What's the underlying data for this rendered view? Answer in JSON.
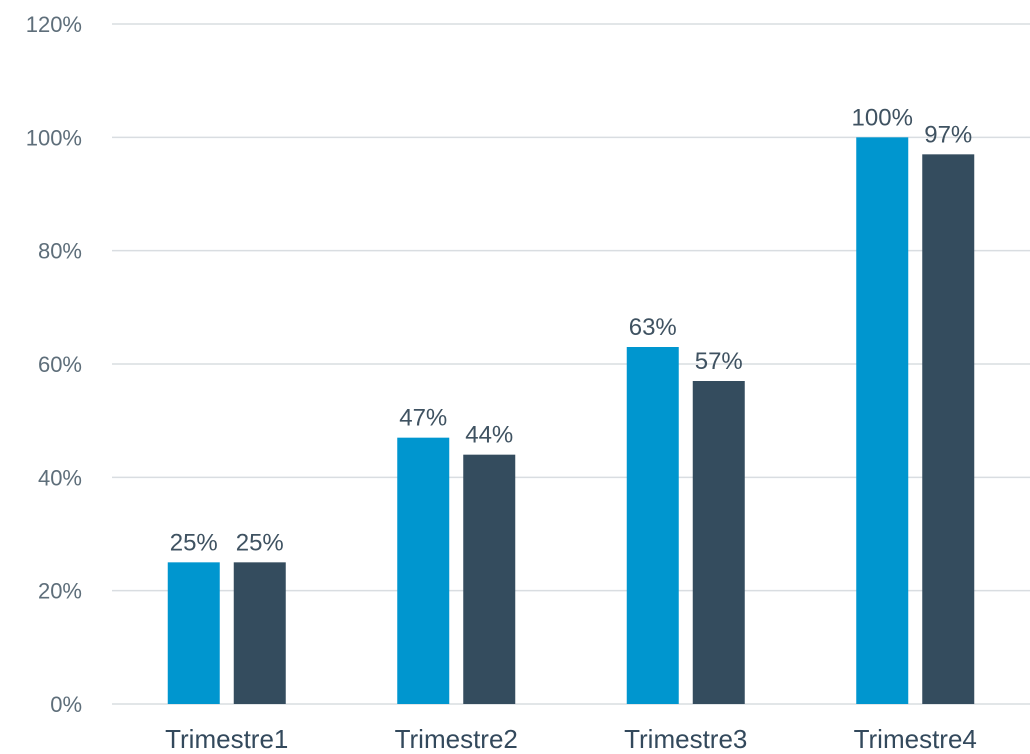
{
  "chart_data": {
    "type": "bar",
    "categories": [
      "Trimestre1",
      "Trimestre2",
      "Trimestre3",
      "Trimestre4"
    ],
    "series": [
      {
        "values": [
          25,
          47,
          63,
          100
        ],
        "color": "#0096cf"
      },
      {
        "values": [
          25,
          44,
          57,
          97
        ],
        "color": "#344c5e"
      }
    ],
    "value_labels": [
      [
        "25%",
        "47%",
        "63%",
        "100%"
      ],
      [
        "25%",
        "44%",
        "57%",
        "97%"
      ]
    ],
    "y_ticks": [
      "0%",
      "20%",
      "40%",
      "60%",
      "80%",
      "100%",
      "120%"
    ],
    "ylim": [
      0,
      120
    ],
    "title": "",
    "xlabel": "",
    "ylabel": "",
    "grid": true,
    "legend": "none"
  }
}
